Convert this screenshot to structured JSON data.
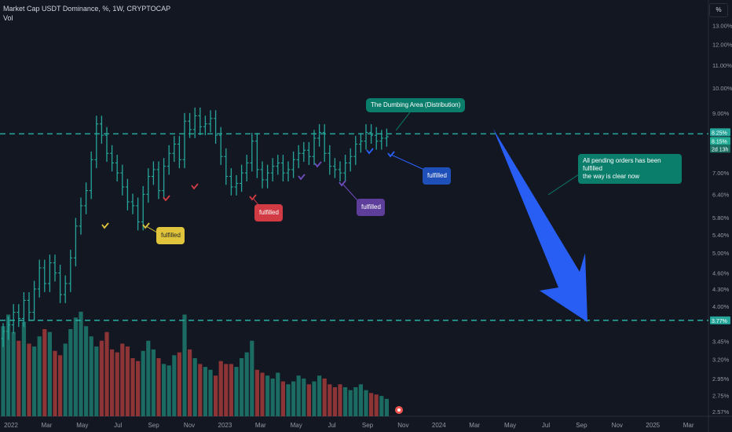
{
  "header": {
    "title": "Market Cap USDT Dominance, %, 1W, CRYPTOCAP",
    "vol_label": "Vol",
    "unit_button": "%"
  },
  "price_tags": {
    "resistance": "8.25%",
    "current": "8.15%",
    "countdown": "2d 13h",
    "support": "3.77%"
  },
  "annotations": {
    "distribution": "The Dumbing Area (Distribution)",
    "pending_line1": "All pending orders has been fulfilled",
    "pending_line2": "the way is clear now",
    "fulfilled_yellow": "fulfilled",
    "fulfilled_red": "fulfilled",
    "fulfilled_purple": "fulfilled",
    "fulfilled_blue": "fulfilled"
  },
  "colors": {
    "background": "#131722",
    "up": "#26a69a",
    "down": "#ef5350",
    "teal_line": "#26a69a",
    "arrow": "#2962ff",
    "yellow": "#e0c53c",
    "red": "#d23a44",
    "purple": "#5d3f9b",
    "blue": "#1f4fb8",
    "note_teal": "#0b7d6b"
  },
  "chart_data": {
    "type": "bar",
    "title": "Market Cap USDT Dominance, %, 1W, CRYPTOCAP",
    "y_axis": {
      "scale": "log",
      "ticks": [
        "13.00%",
        "12.00%",
        "11.00%",
        "10.00%",
        "9.00%",
        "8.25%",
        "7.00%",
        "6.40%",
        "5.80%",
        "5.40%",
        "5.00%",
        "4.60%",
        "4.30%",
        "4.00%",
        "3.77%",
        "3.45%",
        "3.20%",
        "2.95%",
        "2.75%",
        "2.57%"
      ],
      "range": [
        2.52,
        14.0
      ]
    },
    "x_axis": {
      "ticks": [
        "2022",
        "Mar",
        "May",
        "Jul",
        "Sep",
        "Nov",
        "2023",
        "Mar",
        "May",
        "Jul",
        "Sep",
        "Nov",
        "2024",
        "Mar",
        "May",
        "Jul",
        "Sep",
        "Nov",
        "2025",
        "Mar"
      ]
    },
    "levels": {
      "resistance": 8.25,
      "support": 3.77,
      "last": 8.15
    },
    "weekly_close": [
      3.6,
      3.7,
      3.9,
      3.8,
      4.1,
      3.9,
      4.3,
      4.7,
      4.4,
      4.8,
      4.6,
      4.2,
      4.4,
      4.9,
      5.6,
      6.1,
      6.5,
      7.4,
      8.6,
      8.2,
      7.6,
      7.3,
      7.0,
      6.6,
      6.2,
      6.1,
      5.7,
      6.4,
      6.9,
      7.1,
      6.5,
      7.2,
      7.6,
      7.9,
      7.4,
      8.7,
      8.4,
      8.9,
      8.5,
      8.6,
      8.8,
      8.2,
      7.5,
      6.9,
      6.6,
      6.7,
      7.0,
      7.3,
      8.0,
      7.1,
      6.8,
      7.0,
      7.2,
      7.3,
      7.0,
      7.1,
      7.4,
      7.6,
      7.7,
      7.5,
      8.1,
      8.3,
      7.6,
      7.2,
      7.1,
      7.0,
      7.3,
      7.5,
      7.9,
      8.0,
      8.3,
      8.2,
      8.0,
      8.1,
      8.15
    ],
    "weekly_volume": [
      62,
      70,
      58,
      52,
      65,
      50,
      48,
      55,
      60,
      58,
      45,
      42,
      50,
      60,
      68,
      72,
      62,
      55,
      48,
      52,
      58,
      46,
      44,
      50,
      48,
      40,
      38,
      45,
      52,
      46,
      40,
      36,
      35,
      42,
      44,
      70,
      46,
      40,
      36,
      34,
      32,
      28,
      38,
      36,
      36,
      34,
      40,
      44,
      52,
      32,
      30,
      28,
      26,
      30,
      24,
      22,
      24,
      28,
      26,
      22,
      24,
      28,
      26,
      22,
      20,
      22,
      20,
      18,
      20,
      22,
      18,
      16,
      15,
      14,
      12
    ],
    "markers": {
      "yellow": [
        [
          134,
          288
        ],
        [
          186,
          288
        ]
      ],
      "red": [
        [
          212,
          253
        ],
        [
          248,
          238
        ],
        [
          322,
          252
        ]
      ],
      "purple": [
        [
          384,
          226
        ],
        [
          405,
          210
        ],
        [
          436,
          234
        ]
      ],
      "blue": [
        [
          471,
          193
        ],
        [
          498,
          197
        ]
      ]
    }
  }
}
